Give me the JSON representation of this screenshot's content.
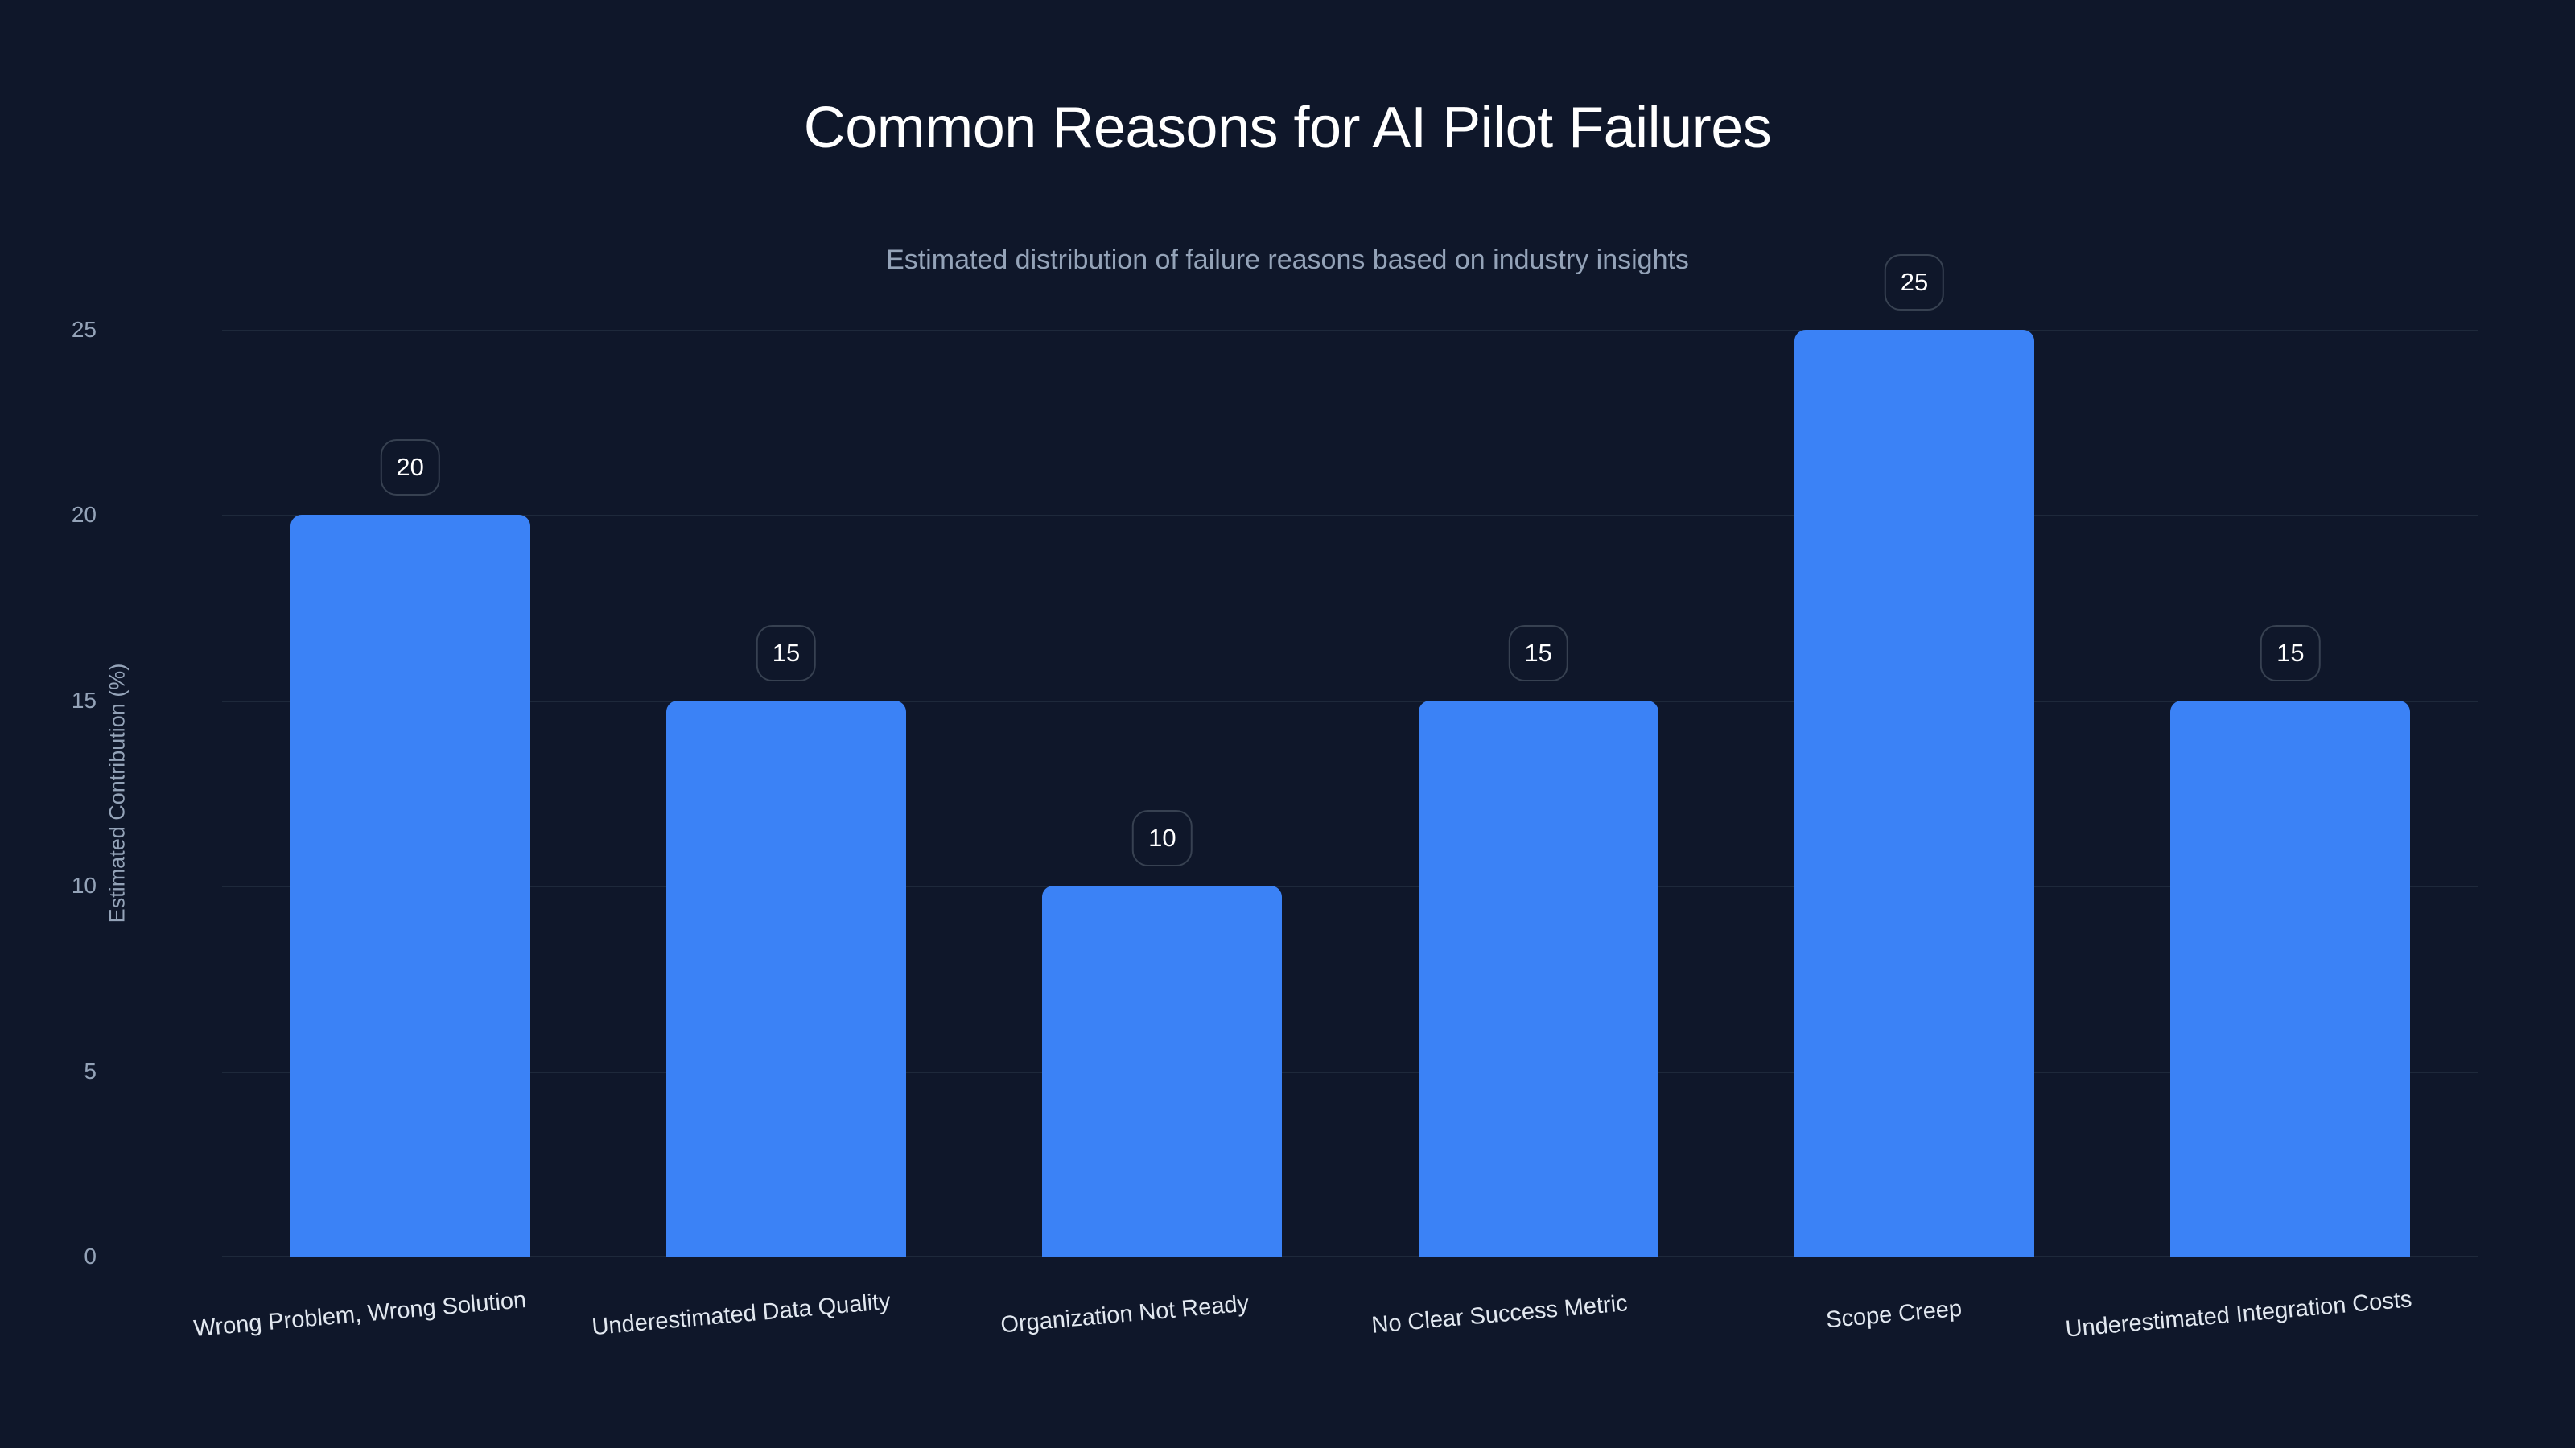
{
  "header": {
    "title": "Common Reasons for AI Pilot Failures",
    "subtitle": "Estimated distribution of failure reasons based on industry insights"
  },
  "axes": {
    "ylabel": "Estimated Contribution (%)",
    "yticks": [
      "0",
      "5",
      "10",
      "15",
      "20",
      "25"
    ]
  },
  "colors": {
    "background": "#0f172a",
    "bar": "#3b82f6",
    "grid": "#1e293b",
    "badge_border": "#374151"
  },
  "bars": [
    {
      "label": "Wrong Problem, Wrong Solution",
      "value": "20"
    },
    {
      "label": "Underestimated Data Quality",
      "value": "15"
    },
    {
      "label": "Organization Not Ready",
      "value": "10"
    },
    {
      "label": "No Clear Success Metric",
      "value": "15"
    },
    {
      "label": "Scope Creep",
      "value": "25"
    },
    {
      "label": "Underestimated Integration Costs",
      "value": "15"
    }
  ],
  "chart_data": {
    "type": "bar",
    "title": "Common Reasons for AI Pilot Failures",
    "subtitle": "Estimated distribution of failure reasons based on industry insights",
    "categories": [
      "Wrong Problem, Wrong Solution",
      "Underestimated Data Quality",
      "Organization Not Ready",
      "No Clear Success Metric",
      "Scope Creep",
      "Underestimated Integration Costs"
    ],
    "values": [
      20,
      15,
      10,
      15,
      25,
      15
    ],
    "xlabel": "",
    "ylabel": "Estimated Contribution (%)",
    "ylim": [
      0,
      25
    ],
    "yticks": [
      0,
      5,
      10,
      15,
      20,
      25
    ],
    "grid": true,
    "legend": null,
    "data_labels": true
  }
}
